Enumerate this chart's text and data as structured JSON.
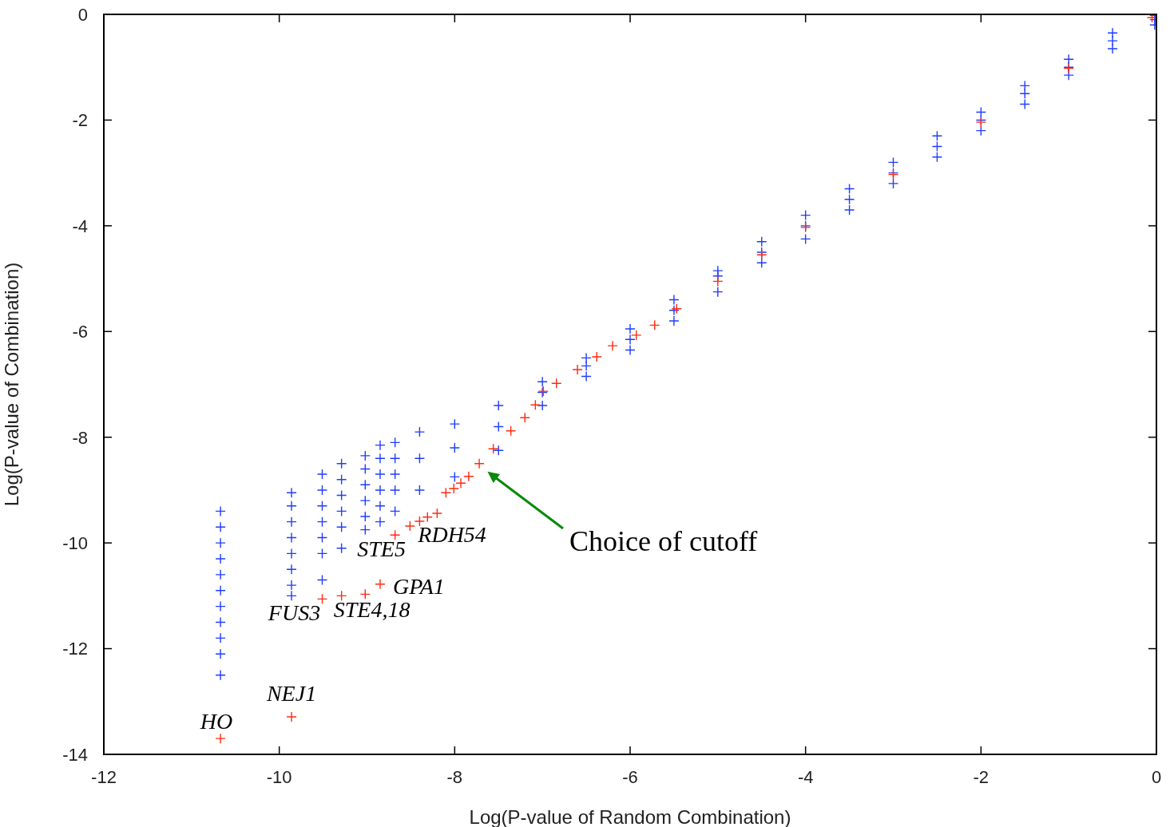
{
  "chart_data": {
    "type": "scatter",
    "xlabel": "Log(P-value of Random Combination)",
    "ylabel": "Log(P-value of Combination)",
    "xlim": [
      -12,
      0
    ],
    "xticks": [
      -12,
      -10,
      -8,
      -6,
      -4,
      -2,
      0
    ],
    "ylim": [
      -14,
      0
    ],
    "yticks": [
      -14,
      -12,
      -10,
      -8,
      -6,
      -4,
      -2,
      0
    ],
    "series": [
      {
        "color": "#1f3dff",
        "marker": "cross",
        "x": [
          -10.67,
          -10.67,
          -10.67,
          -10.67,
          -10.67,
          -10.67,
          -10.67,
          -10.67,
          -10.67,
          -10.67,
          -10.67,
          -9.86,
          -9.86,
          -9.86,
          -9.86,
          -9.86,
          -9.86,
          -9.86,
          -9.86,
          -9.51,
          -9.51,
          -9.51,
          -9.51,
          -9.51,
          -9.51,
          -9.51,
          -9.29,
          -9.29,
          -9.29,
          -9.29,
          -9.29,
          -9.29,
          -9.02,
          -9.02,
          -9.02,
          -9.02,
          -9.02,
          -9.02,
          -8.85,
          -8.85,
          -8.85,
          -8.85,
          -8.85,
          -8.85,
          -8.68,
          -8.68,
          -8.68,
          -8.68,
          -8.68,
          -8.4,
          -8.4,
          -8.4,
          -8.0,
          -8.0,
          -8.0,
          -7.5,
          -7.5,
          -7.5,
          -7.0,
          -7.0,
          -7.0,
          -6.5,
          -6.5,
          -6.5,
          -6.0,
          -6.0,
          -6.0,
          -5.5,
          -5.5,
          -5.5,
          -5.0,
          -5.0,
          -5.0,
          -4.5,
          -4.5,
          -4.5,
          -4.0,
          -4.0,
          -4.0,
          -3.5,
          -3.5,
          -3.5,
          -3.0,
          -3.0,
          -3.0,
          -2.5,
          -2.5,
          -2.5,
          -2.0,
          -2.0,
          -2.0,
          -1.5,
          -1.5,
          -1.5,
          -1.0,
          -1.0,
          -1.0,
          -0.5,
          -0.5,
          -0.5,
          -0.02,
          -0.02,
          -0.02
        ],
        "values": [
          -9.4,
          -9.7,
          -10.0,
          -10.3,
          -10.6,
          -10.9,
          -11.2,
          -11.5,
          -11.8,
          -12.1,
          -12.5,
          -9.05,
          -9.3,
          -9.6,
          -9.9,
          -10.2,
          -10.5,
          -10.8,
          -11.0,
          -8.7,
          -9.0,
          -9.3,
          -9.6,
          -9.9,
          -10.2,
          -10.7,
          -8.5,
          -8.8,
          -9.1,
          -9.4,
          -9.7,
          -10.1,
          -8.35,
          -8.6,
          -8.9,
          -9.2,
          -9.5,
          -9.75,
          -8.15,
          -8.4,
          -8.7,
          -9.0,
          -9.3,
          -9.6,
          -8.1,
          -8.4,
          -8.7,
          -9.0,
          -9.4,
          -7.9,
          -8.4,
          -9.0,
          -7.75,
          -8.2,
          -8.75,
          -7.4,
          -7.8,
          -8.25,
          -6.95,
          -7.15,
          -7.4,
          -6.5,
          -6.65,
          -6.85,
          -5.95,
          -6.15,
          -6.35,
          -5.4,
          -5.6,
          -5.8,
          -4.85,
          -4.95,
          -5.25,
          -4.3,
          -4.5,
          -4.7,
          -3.8,
          -4.0,
          -4.25,
          -3.3,
          -3.5,
          -3.7,
          -2.8,
          -3.0,
          -3.2,
          -2.3,
          -2.5,
          -2.7,
          -1.85,
          -2.0,
          -2.2,
          -1.35,
          -1.5,
          -1.7,
          -0.85,
          -1.0,
          -1.15,
          -0.35,
          -0.5,
          -0.65,
          -0.02,
          -0.1,
          -0.2
        ]
      },
      {
        "color": "#ff2a10",
        "marker": "cross",
        "x": [
          -10.67,
          -9.86,
          -9.51,
          -9.29,
          -9.02,
          -8.85,
          -8.68,
          -8.51,
          -8.4,
          -8.31,
          -8.2,
          -8.1,
          -8.01,
          -7.93,
          -7.84,
          -7.72,
          -7.56,
          -7.36,
          -7.2,
          -7.08,
          -6.99,
          -6.84,
          -6.6,
          -6.38,
          -6.2,
          -5.93,
          -5.72,
          -5.47,
          -5.0,
          -4.5,
          -4.0,
          -3.0,
          -2.0,
          -1.0,
          -0.05
        ],
        "values": [
          -13.7,
          -13.29,
          -11.06,
          -11.0,
          -10.97,
          -10.78,
          -9.85,
          -9.68,
          -9.59,
          -9.51,
          -9.44,
          -9.05,
          -8.97,
          -8.87,
          -8.74,
          -8.5,
          -8.22,
          -7.88,
          -7.63,
          -7.39,
          -7.13,
          -6.98,
          -6.72,
          -6.48,
          -6.27,
          -6.07,
          -5.88,
          -5.57,
          -5.05,
          -4.55,
          -4.03,
          -3.03,
          -2.04,
          -1.02,
          -0.06
        ]
      }
    ],
    "annotations": [
      {
        "text": "HO",
        "x": -10.67,
        "y": -13.7
      },
      {
        "text": "NEJ1",
        "x": -9.86,
        "y": -13.29
      },
      {
        "text": "FUS3",
        "x": -9.51,
        "y": -11.06
      },
      {
        "text": "STE4,18",
        "x": -9.29,
        "y": -11.0
      },
      {
        "text": "GPA1",
        "x": -8.85,
        "y": -10.78
      },
      {
        "text": "STE5",
        "x": -8.68,
        "y": -9.85
      },
      {
        "text": "RDH54",
        "x": -8.51,
        "y": -9.68
      },
      "Choice of cutoff"
    ]
  }
}
